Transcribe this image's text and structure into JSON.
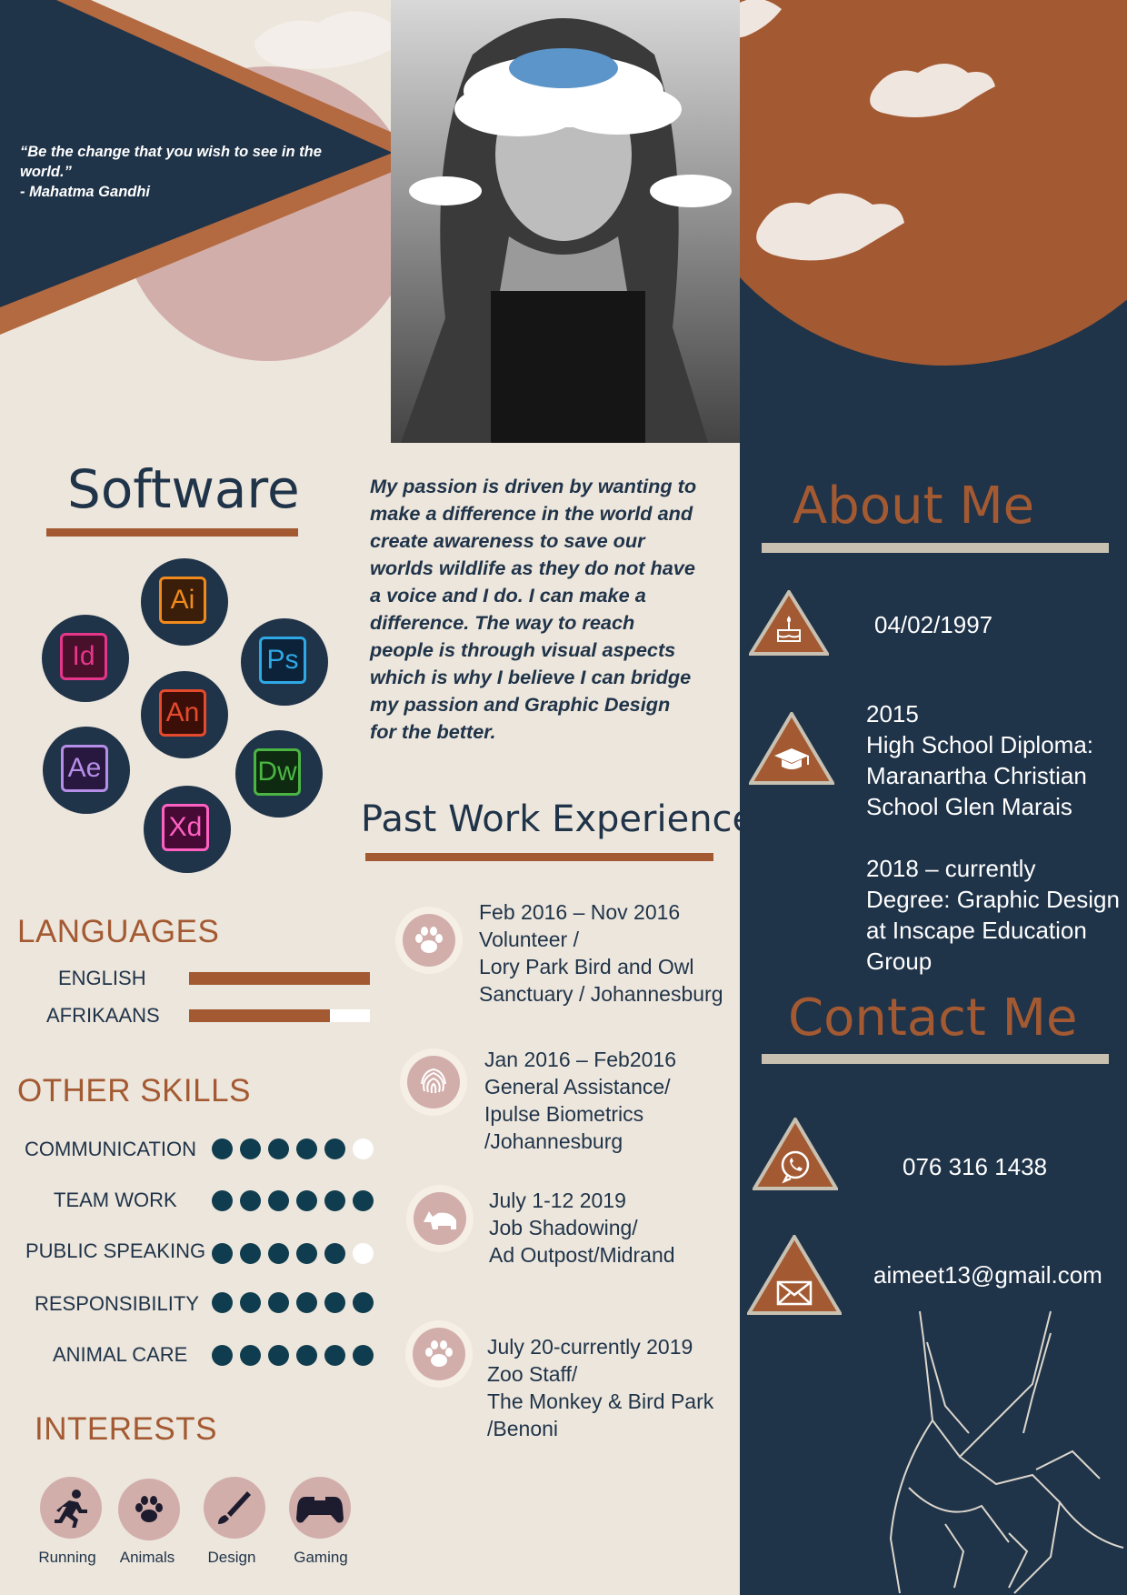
{
  "colors": {
    "navy": "#1f3349",
    "rust": "#a35a32",
    "cream": "#ede6dc",
    "pink": "#d2aeab",
    "teal_dot": "#0f3c4e"
  },
  "quote": {
    "line1": "“Be the change that you wish to see in the",
    "line2": "world.”",
    "line3": "- Mahatma Gandhi"
  },
  "software": {
    "title": "Software",
    "apps": [
      {
        "abbr": "Ai",
        "color": "#f08a1c",
        "bg": "#3a1e0a"
      },
      {
        "abbr": "Id",
        "color": "#e5368a",
        "bg": "#49102c"
      },
      {
        "abbr": "Ps",
        "color": "#2fa8e6",
        "bg": "#0b2238"
      },
      {
        "abbr": "An",
        "color": "#e64a2d",
        "bg": "#3b0f08"
      },
      {
        "abbr": "Ae",
        "color": "#b58ee8",
        "bg": "#28173f"
      },
      {
        "abbr": "Dw",
        "color": "#4bb543",
        "bg": "#0e2a10"
      },
      {
        "abbr": "Xd",
        "color": "#ff61c2",
        "bg": "#470a34"
      }
    ]
  },
  "passion": [
    "My passion is driven by wanting to",
    "make a difference in the world and",
    "create awareness to save our",
    "worlds wildlife as they do not have",
    "a voice and I do. I can make a",
    "difference. The way to reach",
    "people is through visual aspects",
    "which is why I believe I  can bridge",
    "my passion and Graphic Design",
    "for the better."
  ],
  "experience": {
    "title": "Past Work Experience",
    "jobs": [
      {
        "icon": "paw-icon",
        "lines": [
          "Feb 2016 – Nov 2016",
          "Volunteer /",
          "Lory Park Bird and Owl",
          "Sanctuary / Johannesburg"
        ]
      },
      {
        "icon": "fingerprint-icon",
        "lines": [
          "Jan 2016 – Feb2016",
          "General Assistance/",
          "Ipulse Biometrics",
          "/Johannesburg"
        ]
      },
      {
        "icon": "rhino-icon",
        "lines": [
          "July 1-12 2019",
          "Job Shadowing/",
          "Ad Outpost/Midrand"
        ]
      },
      {
        "icon": "paw-icon",
        "lines": [
          "July 20-currently 2019",
          "Zoo Staff/",
          "The Monkey & Bird Park",
          "/Benoni"
        ]
      }
    ]
  },
  "languages": {
    "title": "LANGUAGES",
    "items": [
      {
        "name": "ENGLISH",
        "level": 1.0
      },
      {
        "name": "AFRIKAANS",
        "level": 0.78
      }
    ]
  },
  "skills": {
    "title": "OTHER SKILLS",
    "items": [
      {
        "name": "COMMUNICATION",
        "rating": 5,
        "max": 6
      },
      {
        "name": "TEAM WORK",
        "rating": 6,
        "max": 6
      },
      {
        "name": "PUBLIC SPEAKING",
        "rating": 5,
        "max": 6
      },
      {
        "name": "RESPONSIBILITY",
        "rating": 6,
        "max": 6
      },
      {
        "name": "ANIMAL CARE",
        "rating": 6,
        "max": 6
      }
    ]
  },
  "interests": {
    "title": "INTERESTS",
    "items": [
      {
        "label": "Running",
        "icon": "running-icon"
      },
      {
        "label": "Animals",
        "icon": "paw-icon"
      },
      {
        "label": "Design",
        "icon": "brush-icon"
      },
      {
        "label": "Gaming",
        "icon": "gamepad-icon"
      }
    ]
  },
  "about": {
    "title": "About Me",
    "birthday": "04/02/1997",
    "edu1": [
      "2015",
      "High School Diploma:",
      "Maranartha Christian",
      "School Glen Marais"
    ],
    "edu2": [
      "2018 – currently",
      "Degree: Graphic Design",
      "at Inscape Education",
      "Group"
    ]
  },
  "contact": {
    "title": "Contact Me",
    "phone": "076 316 1438",
    "email": "aimeet13@gmail.com"
  }
}
